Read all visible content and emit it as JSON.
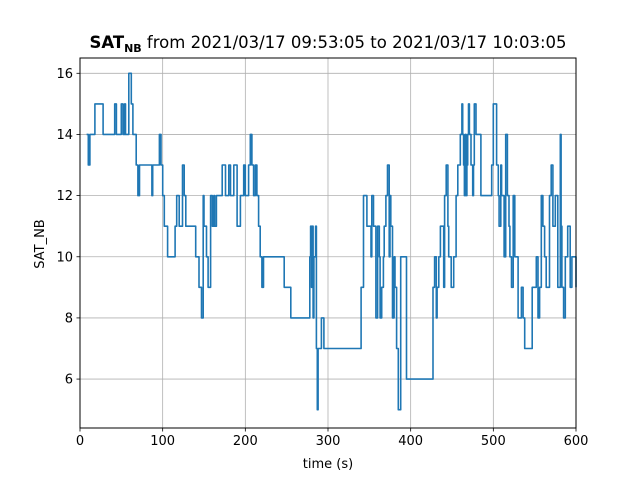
{
  "chart_data": {
    "type": "line",
    "title": "SAT_NB from 2021/03/17 09:53:05 to 2021/03/17 10:03:05",
    "title_bold": "SAT",
    "title_sub": "NB",
    "title_rest": " from 2021/03/17 09:53:05 to 2021/03/17 10:03:05",
    "xlabel": "time (s)",
    "ylabel": "SAT_NB",
    "xlim": [
      0,
      600
    ],
    "ylim": [
      4.4,
      16.5
    ],
    "xticks": [
      0,
      100,
      200,
      300,
      400,
      500,
      600
    ],
    "yticks": [
      6,
      8,
      10,
      12,
      14,
      16
    ],
    "grid": true,
    "step": true,
    "color": "#1f77b4",
    "series": [
      {
        "x": [
          8,
          10,
          12,
          18,
          28,
          42,
          44,
          50,
          52,
          54,
          55,
          57,
          59,
          60,
          62,
          64,
          68,
          70,
          72,
          75,
          87,
          88,
          90,
          96,
          97,
          98,
          100,
          102,
          103,
          106,
          115,
          117,
          120,
          124,
          126,
          128,
          130,
          134,
          140,
          144,
          147,
          149,
          150,
          153,
          155,
          158,
          160,
          162,
          163,
          165,
          172,
          176,
          180,
          182,
          184,
          186,
          190,
          194,
          198,
          200,
          204,
          206,
          208,
          210,
          212,
          214,
          216,
          218,
          220,
          222,
          224,
          247,
          255,
          257,
          257,
          276,
          278,
          279,
          280,
          281,
          282,
          283,
          285,
          286,
          287,
          288,
          289,
          292,
          295,
          340,
          343,
          347,
          352,
          353,
          355,
          358,
          360,
          362,
          363,
          365,
          367,
          368,
          370,
          372,
          374,
          375,
          376,
          378,
          380,
          381,
          383,
          385,
          388,
          393,
          395,
          427,
          429,
          431,
          432,
          434,
          436,
          440,
          441,
          443,
          445,
          446,
          449,
          452,
          455,
          457,
          460,
          462,
          463,
          464,
          465,
          466,
          467,
          468,
          469,
          470,
          471,
          473,
          475,
          476,
          477,
          479,
          485,
          490,
          498,
          500,
          504,
          506,
          507,
          509,
          510,
          513,
          515,
          517,
          519,
          520,
          522,
          524,
          526,
          530,
          532,
          534,
          536,
          537,
          538,
          547,
          552,
          554,
          556,
          558,
          560,
          562,
          564,
          568,
          570,
          572,
          575,
          578,
          581,
          582,
          583,
          585,
          587,
          590,
          593,
          595,
          600
        ],
        "y": [
          14,
          13,
          14,
          15,
          14,
          15,
          14,
          15,
          14,
          15,
          14,
          14,
          16,
          16,
          15,
          14,
          13,
          12,
          13,
          13,
          12,
          13,
          13,
          14,
          14,
          13,
          12,
          11,
          11,
          10,
          11,
          12,
          11,
          13,
          12,
          11,
          11,
          11,
          10,
          9,
          8,
          12,
          11,
          10,
          9,
          12,
          11,
          12,
          11,
          12,
          13,
          12,
          13,
          12,
          12,
          13,
          11,
          12,
          13,
          12,
          13,
          14,
          13,
          12,
          13,
          12,
          11,
          10,
          9,
          10,
          10,
          9,
          8,
          8,
          8,
          8,
          10,
          11,
          9,
          11,
          8,
          10,
          11,
          7,
          5,
          7,
          7,
          8,
          7,
          9,
          12,
          11,
          10,
          12,
          11,
          8,
          11,
          10,
          8,
          9,
          10,
          11,
          12,
          13,
          10,
          12,
          11,
          8,
          10,
          9,
          7,
          5,
          10,
          10,
          6,
          9,
          10,
          8,
          9,
          10,
          11,
          9,
          12,
          13,
          11,
          10,
          9,
          10,
          12,
          13,
          14,
          15,
          14,
          13,
          12,
          14,
          12,
          13,
          14,
          15,
          14,
          13,
          12,
          13,
          15,
          14,
          12,
          12,
          13,
          15,
          13,
          12,
          11,
          13,
          12,
          10,
          14,
          12,
          11,
          10,
          9,
          12,
          10,
          8,
          8,
          9,
          8,
          8,
          7,
          9,
          10,
          8,
          9,
          12,
          11,
          10,
          9,
          12,
          13,
          11,
          12,
          9,
          14,
          11,
          9,
          8,
          10,
          11,
          9,
          10,
          9
        ]
      }
    ]
  }
}
